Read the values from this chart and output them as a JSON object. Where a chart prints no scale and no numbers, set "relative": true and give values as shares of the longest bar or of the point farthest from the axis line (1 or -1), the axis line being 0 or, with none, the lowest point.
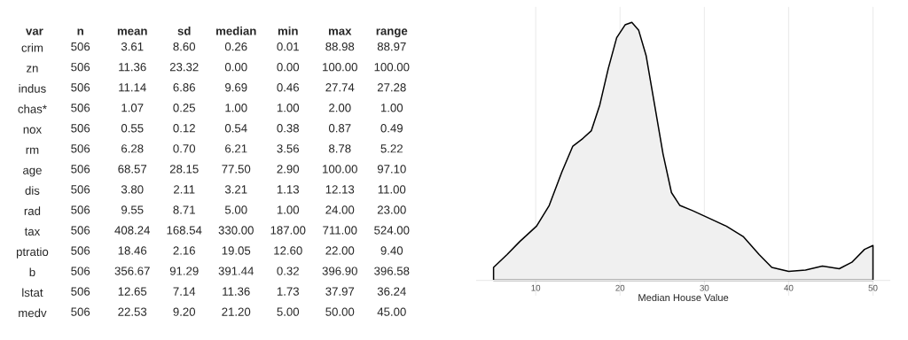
{
  "chart_data": [
    {
      "type": "heatmap",
      "ylabel": "var",
      "categories": [
        "n",
        "mean",
        "sd",
        "median",
        "min",
        "max",
        "range"
      ],
      "y_categories": [
        "crim",
        "zn",
        "indus",
        "chas*",
        "nox",
        "rm",
        "age",
        "dis",
        "rad",
        "tax",
        "ptratio",
        "b",
        "lstat",
        "medv"
      ],
      "cells": [
        [
          506,
          3.61,
          8.6,
          0.26,
          0.01,
          88.98,
          88.97
        ],
        [
          506,
          11.36,
          23.32,
          0.0,
          0.0,
          100.0,
          100.0
        ],
        [
          506,
          11.14,
          6.86,
          9.69,
          0.46,
          27.74,
          27.28
        ],
        [
          506,
          1.07,
          0.25,
          1.0,
          1.0,
          2.0,
          1.0
        ],
        [
          506,
          0.55,
          0.12,
          0.54,
          0.38,
          0.87,
          0.49
        ],
        [
          506,
          6.28,
          0.7,
          6.21,
          3.56,
          8.78,
          5.22
        ],
        [
          506,
          68.57,
          28.15,
          77.5,
          2.9,
          100.0,
          97.1
        ],
        [
          506,
          3.8,
          2.11,
          3.21,
          1.13,
          12.13,
          11.0
        ],
        [
          506,
          9.55,
          8.71,
          5.0,
          1.0,
          24.0,
          23.0
        ],
        [
          506,
          408.24,
          168.54,
          330.0,
          187.0,
          711.0,
          524.0
        ],
        [
          506,
          18.46,
          2.16,
          19.05,
          12.6,
          22.0,
          9.4
        ],
        [
          506,
          356.67,
          91.29,
          391.44,
          0.32,
          396.9,
          396.58
        ],
        [
          506,
          12.65,
          7.14,
          11.36,
          1.73,
          37.97,
          36.24
        ],
        [
          506,
          22.53,
          9.2,
          21.2,
          5.0,
          50.0,
          45.0
        ]
      ],
      "cell_labels": [
        [
          "506",
          "3.61",
          "8.60",
          "0.26",
          "0.01",
          "88.98",
          "88.97"
        ],
        [
          "506",
          "11.36",
          "23.32",
          "0.00",
          "0.00",
          "100.00",
          "100.00"
        ],
        [
          "506",
          "11.14",
          "6.86",
          "9.69",
          "0.46",
          "27.74",
          "27.28"
        ],
        [
          "506",
          "1.07",
          "0.25",
          "1.00",
          "1.00",
          "2.00",
          "1.00"
        ],
        [
          "506",
          "0.55",
          "0.12",
          "0.54",
          "0.38",
          "0.87",
          "0.49"
        ],
        [
          "506",
          "6.28",
          "0.70",
          "6.21",
          "3.56",
          "8.78",
          "5.22"
        ],
        [
          "506",
          "68.57",
          "28.15",
          "77.50",
          "2.90",
          "100.00",
          "97.10"
        ],
        [
          "506",
          "3.80",
          "2.11",
          "3.21",
          "1.13",
          "12.13",
          "11.00"
        ],
        [
          "506",
          "9.55",
          "8.71",
          "5.00",
          "1.00",
          "24.00",
          "23.00"
        ],
        [
          "506",
          "408.24",
          "168.54",
          "330.00",
          "187.00",
          "711.00",
          "524.00"
        ],
        [
          "506",
          "18.46",
          "2.16",
          "19.05",
          "12.60",
          "22.00",
          "9.40"
        ],
        [
          "506",
          "356.67",
          "91.29",
          "391.44",
          "0.32",
          "396.90",
          "396.58"
        ],
        [
          "506",
          "12.65",
          "7.14",
          "11.36",
          "1.73",
          "37.97",
          "36.24"
        ],
        [
          "506",
          "22.53",
          "9.20",
          "21.20",
          "5.00",
          "50.00",
          "45.00"
        ]
      ]
    },
    {
      "type": "area",
      "relative": true,
      "xlabel": "Median House Value",
      "grid": "x",
      "xlim": [
        3,
        52
      ],
      "xticks": [
        10,
        20,
        30,
        40,
        50
      ],
      "series": [
        {
          "color": "#f0f0f0",
          "x": [
            5,
            6.6,
            8.1,
            10.1,
            11.6,
            13.1,
            14.4,
            15.6,
            16.6,
            17.6,
            18.6,
            19.6,
            20.6,
            21.4,
            22.2,
            23.1,
            24.1,
            25.1,
            26.1,
            27.1,
            28.6,
            30.6,
            32.6,
            34.6,
            36.5,
            38.0,
            40.0,
            42.0,
            44.0,
            46.0,
            47.5,
            49.0,
            50
          ],
          "values": [
            0.05,
            0.1,
            0.15,
            0.21,
            0.29,
            0.42,
            0.52,
            0.55,
            0.58,
            0.68,
            0.82,
            0.94,
            0.99,
            1.0,
            0.97,
            0.87,
            0.68,
            0.49,
            0.34,
            0.29,
            0.27,
            0.24,
            0.21,
            0.17,
            0.1,
            0.05,
            0.035,
            0.04,
            0.055,
            0.045,
            0.07,
            0.12,
            0.135
          ]
        }
      ]
    }
  ]
}
